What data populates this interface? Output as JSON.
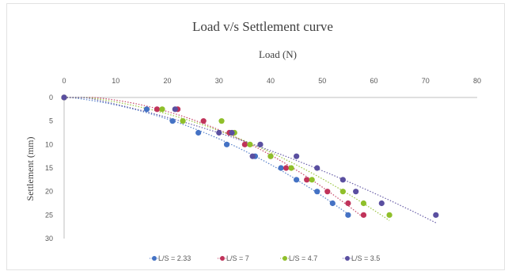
{
  "chart_data": {
    "type": "scatter",
    "title": "Load v/s Settlement  curve",
    "xlabel": "Load (N)",
    "ylabel": "Settlement  (mm)",
    "xlim": [
      0,
      80
    ],
    "ylim": [
      0,
      30
    ],
    "y_inverted": true,
    "x_axis_position": "top",
    "xticks": [
      0,
      10,
      20,
      30,
      40,
      50,
      60,
      70,
      80
    ],
    "yticks": [
      0,
      5,
      10,
      15,
      20,
      25,
      30
    ],
    "grid": false,
    "trendlines": "dotted polynomial",
    "legend_position": "bottom",
    "series": [
      {
        "name": "L/S = 2.33",
        "color": "#4472c4",
        "x": [
          0,
          16,
          21,
          26,
          31.5,
          37,
          42,
          45,
          49,
          52,
          55
        ],
        "y": [
          0,
          2.5,
          5,
          7.5,
          10,
          12.5,
          15,
          17.5,
          20,
          22.5,
          25
        ]
      },
      {
        "name": "L/S = 7",
        "color": "#c0335a",
        "x": [
          0,
          18,
          22,
          27,
          32,
          35,
          40,
          43,
          47,
          51,
          55,
          58
        ],
        "y": [
          0,
          2.5,
          2.5,
          5,
          7.5,
          10,
          12.5,
          15,
          17.5,
          20,
          22.5,
          25
        ]
      },
      {
        "name": "L/S = 4.7",
        "color": "#8fbf2a",
        "x": [
          0,
          19,
          23,
          30.5,
          33,
          36,
          40,
          44,
          48,
          54,
          58,
          63
        ],
        "y": [
          0,
          2.5,
          5,
          5,
          7.5,
          10,
          12.5,
          15,
          17.5,
          20,
          22.5,
          25
        ]
      },
      {
        "name": "L/S = 3.5",
        "color": "#5a4fa0",
        "x": [
          0,
          21.5,
          30,
          32.5,
          36.5,
          38,
          45,
          49,
          54,
          56.5,
          61.5,
          72
        ],
        "y": [
          0,
          2.5,
          7.5,
          7.5,
          12.5,
          10,
          12.5,
          15,
          17.5,
          20,
          22.5,
          25
        ]
      }
    ]
  }
}
